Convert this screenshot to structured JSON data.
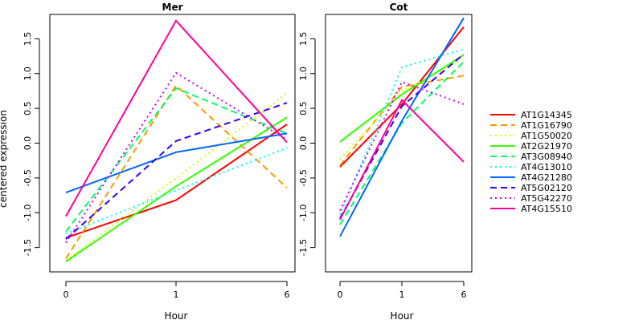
{
  "chart_data": {
    "type": "line",
    "ylabel": "centered expression",
    "xlabel": "Hour",
    "x": [
      0,
      1,
      6
    ],
    "xticks": [
      "0",
      "1",
      "6"
    ],
    "yticks": [
      "-1.5",
      "-1.0",
      "-0.5",
      "0.0",
      "0.5",
      "1.0",
      "1.5"
    ],
    "ylim": [
      -1.85,
      1.85
    ],
    "grid": false,
    "legend_position": "right",
    "legend": [
      {
        "name": "AT1G14345",
        "color": "#FF0000",
        "dash": "solid"
      },
      {
        "name": "AT1G16790",
        "color": "#FF9900",
        "dash": "dashed"
      },
      {
        "name": "AT1G50020",
        "color": "#CCFF00",
        "dash": "dotted"
      },
      {
        "name": "AT2G21970",
        "color": "#33FF00",
        "dash": "solid"
      },
      {
        "name": "AT3G08940",
        "color": "#00FF66",
        "dash": "dashed"
      },
      {
        "name": "AT4G13010",
        "color": "#00FFFF",
        "dash": "dotted"
      },
      {
        "name": "AT4G21280",
        "color": "#0066FF",
        "dash": "solid"
      },
      {
        "name": "AT5G02120",
        "color": "#3300FF",
        "dash": "dashed"
      },
      {
        "name": "AT5G42270",
        "color": "#CC00FF",
        "dash": "dotted"
      },
      {
        "name": "AT4G15510",
        "color": "#FF0099",
        "dash": "solid"
      }
    ],
    "panels": [
      {
        "title": "Mer",
        "series": [
          {
            "name": "AT1G14345",
            "values": [
              -1.36,
              -0.82,
              0.27
            ]
          },
          {
            "name": "AT1G16790",
            "values": [
              -1.66,
              0.83,
              -0.64
            ]
          },
          {
            "name": "AT1G50020",
            "values": [
              -1.69,
              -0.5,
              0.72
            ]
          },
          {
            "name": "AT2G21970",
            "values": [
              -1.7,
              -0.62,
              0.37
            ]
          },
          {
            "name": "AT3G08940",
            "values": [
              -1.27,
              0.79,
              0.14
            ]
          },
          {
            "name": "AT4G13010",
            "values": [
              -1.3,
              -0.68,
              -0.07
            ]
          },
          {
            "name": "AT4G21280",
            "values": [
              -0.71,
              -0.13,
              0.14
            ]
          },
          {
            "name": "AT5G02120",
            "values": [
              -1.38,
              0.03,
              0.58
            ]
          },
          {
            "name": "AT5G42270",
            "values": [
              -1.43,
              1.01,
              0.05
            ]
          },
          {
            "name": "AT4G15510",
            "values": [
              -1.05,
              1.76,
              0.01
            ]
          }
        ]
      },
      {
        "title": "Cot",
        "series": [
          {
            "name": "AT1G14345",
            "values": [
              -0.34,
              0.56,
              1.67
            ]
          },
          {
            "name": "AT1G16790",
            "values": [
              -0.32,
              0.81,
              0.97
            ]
          },
          {
            "name": "AT1G50020",
            "values": [
              -0.23,
              0.74,
              1.22
            ]
          },
          {
            "name": "AT2G21970",
            "values": [
              0.02,
              0.7,
              1.27
            ]
          },
          {
            "name": "AT3G08940",
            "values": [
              -1.17,
              0.29,
              1.17
            ]
          },
          {
            "name": "AT4G13010",
            "values": [
              -1.03,
              1.09,
              1.35
            ]
          },
          {
            "name": "AT4G21280",
            "values": [
              -1.34,
              0.32,
              1.8
            ]
          },
          {
            "name": "AT5G02120",
            "values": [
              -1.08,
              0.53,
              1.28
            ]
          },
          {
            "name": "AT5G42270",
            "values": [
              -0.97,
              0.88,
              0.56
            ]
          },
          {
            "name": "AT4G15510",
            "values": [
              -1.1,
              0.62,
              -0.27
            ]
          }
        ]
      }
    ]
  }
}
